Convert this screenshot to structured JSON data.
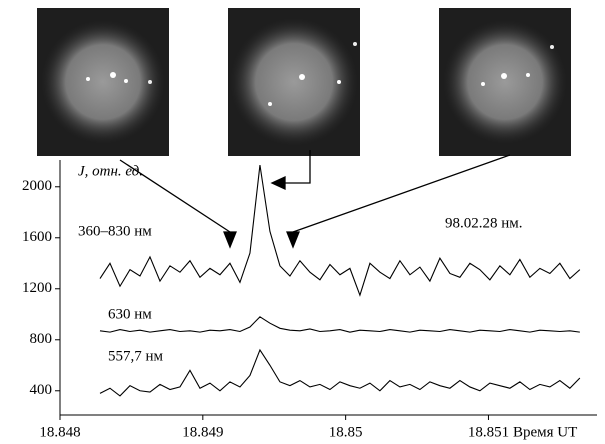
{
  "chart_data": {
    "type": "line",
    "y_label": "J, отн. ед.",
    "x_label": "Время UT",
    "annotation": "98.02.28 нм.",
    "xlim": [
      18.848,
      18.85176
    ],
    "xticks": [
      18.848,
      18.849,
      18.85,
      18.851
    ],
    "ylim": [
      210,
      2210
    ],
    "yticks": [
      400,
      800,
      1200,
      1600,
      2000
    ],
    "x": [
      18.84828,
      18.84835,
      18.84842,
      18.84849,
      18.84856,
      18.84863,
      18.8487,
      18.84877,
      18.84884,
      18.84891,
      18.84898,
      18.84905,
      18.84912,
      18.84919,
      18.84926,
      18.84933,
      18.8494,
      18.84947,
      18.84954,
      18.84961,
      18.84968,
      18.84975,
      18.84982,
      18.84989,
      18.84996,
      18.85003,
      18.8501,
      18.85017,
      18.85024,
      18.85031,
      18.85038,
      18.85045,
      18.85052,
      18.85059,
      18.85066,
      18.85073,
      18.8508,
      18.85087,
      18.85094,
      18.85101,
      18.85108,
      18.85115,
      18.85122,
      18.85129,
      18.85136,
      18.85143,
      18.8515,
      18.85157,
      18.85164
    ],
    "series": [
      {
        "name": "360–830 нм",
        "color": "#000000",
        "values": [
          1280,
          1400,
          1220,
          1350,
          1300,
          1450,
          1260,
          1380,
          1330,
          1420,
          1290,
          1360,
          1310,
          1400,
          1250,
          1480,
          2170,
          1650,
          1380,
          1300,
          1420,
          1330,
          1270,
          1390,
          1310,
          1360,
          1150,
          1400,
          1330,
          1280,
          1420,
          1310,
          1370,
          1260,
          1440,
          1320,
          1290,
          1400,
          1350,
          1270,
          1380,
          1310,
          1430,
          1290,
          1360,
          1320,
          1400,
          1280,
          1350
        ]
      },
      {
        "name": "630 нм",
        "color": "#000000",
        "values": [
          870,
          860,
          880,
          865,
          875,
          860,
          870,
          880,
          865,
          870,
          860,
          875,
          870,
          880,
          865,
          900,
          980,
          930,
          890,
          875,
          870,
          885,
          865,
          870,
          880,
          860,
          875,
          870,
          865,
          880,
          870,
          860,
          875,
          870,
          865,
          880,
          870,
          860,
          875,
          870,
          865,
          880,
          870,
          860,
          875,
          870,
          865,
          870,
          860
        ]
      },
      {
        "name": "557,7 нм",
        "color": "#000000",
        "values": [
          380,
          420,
          360,
          440,
          400,
          390,
          450,
          410,
          430,
          560,
          420,
          460,
          400,
          470,
          430,
          520,
          720,
          600,
          470,
          440,
          480,
          430,
          450,
          410,
          470,
          440,
          420,
          460,
          400,
          480,
          430,
          450,
          410,
          470,
          440,
          420,
          480,
          430,
          400,
          460,
          440,
          420,
          470,
          410,
          450,
          430,
          480,
          420,
          500
        ]
      }
    ]
  }
}
